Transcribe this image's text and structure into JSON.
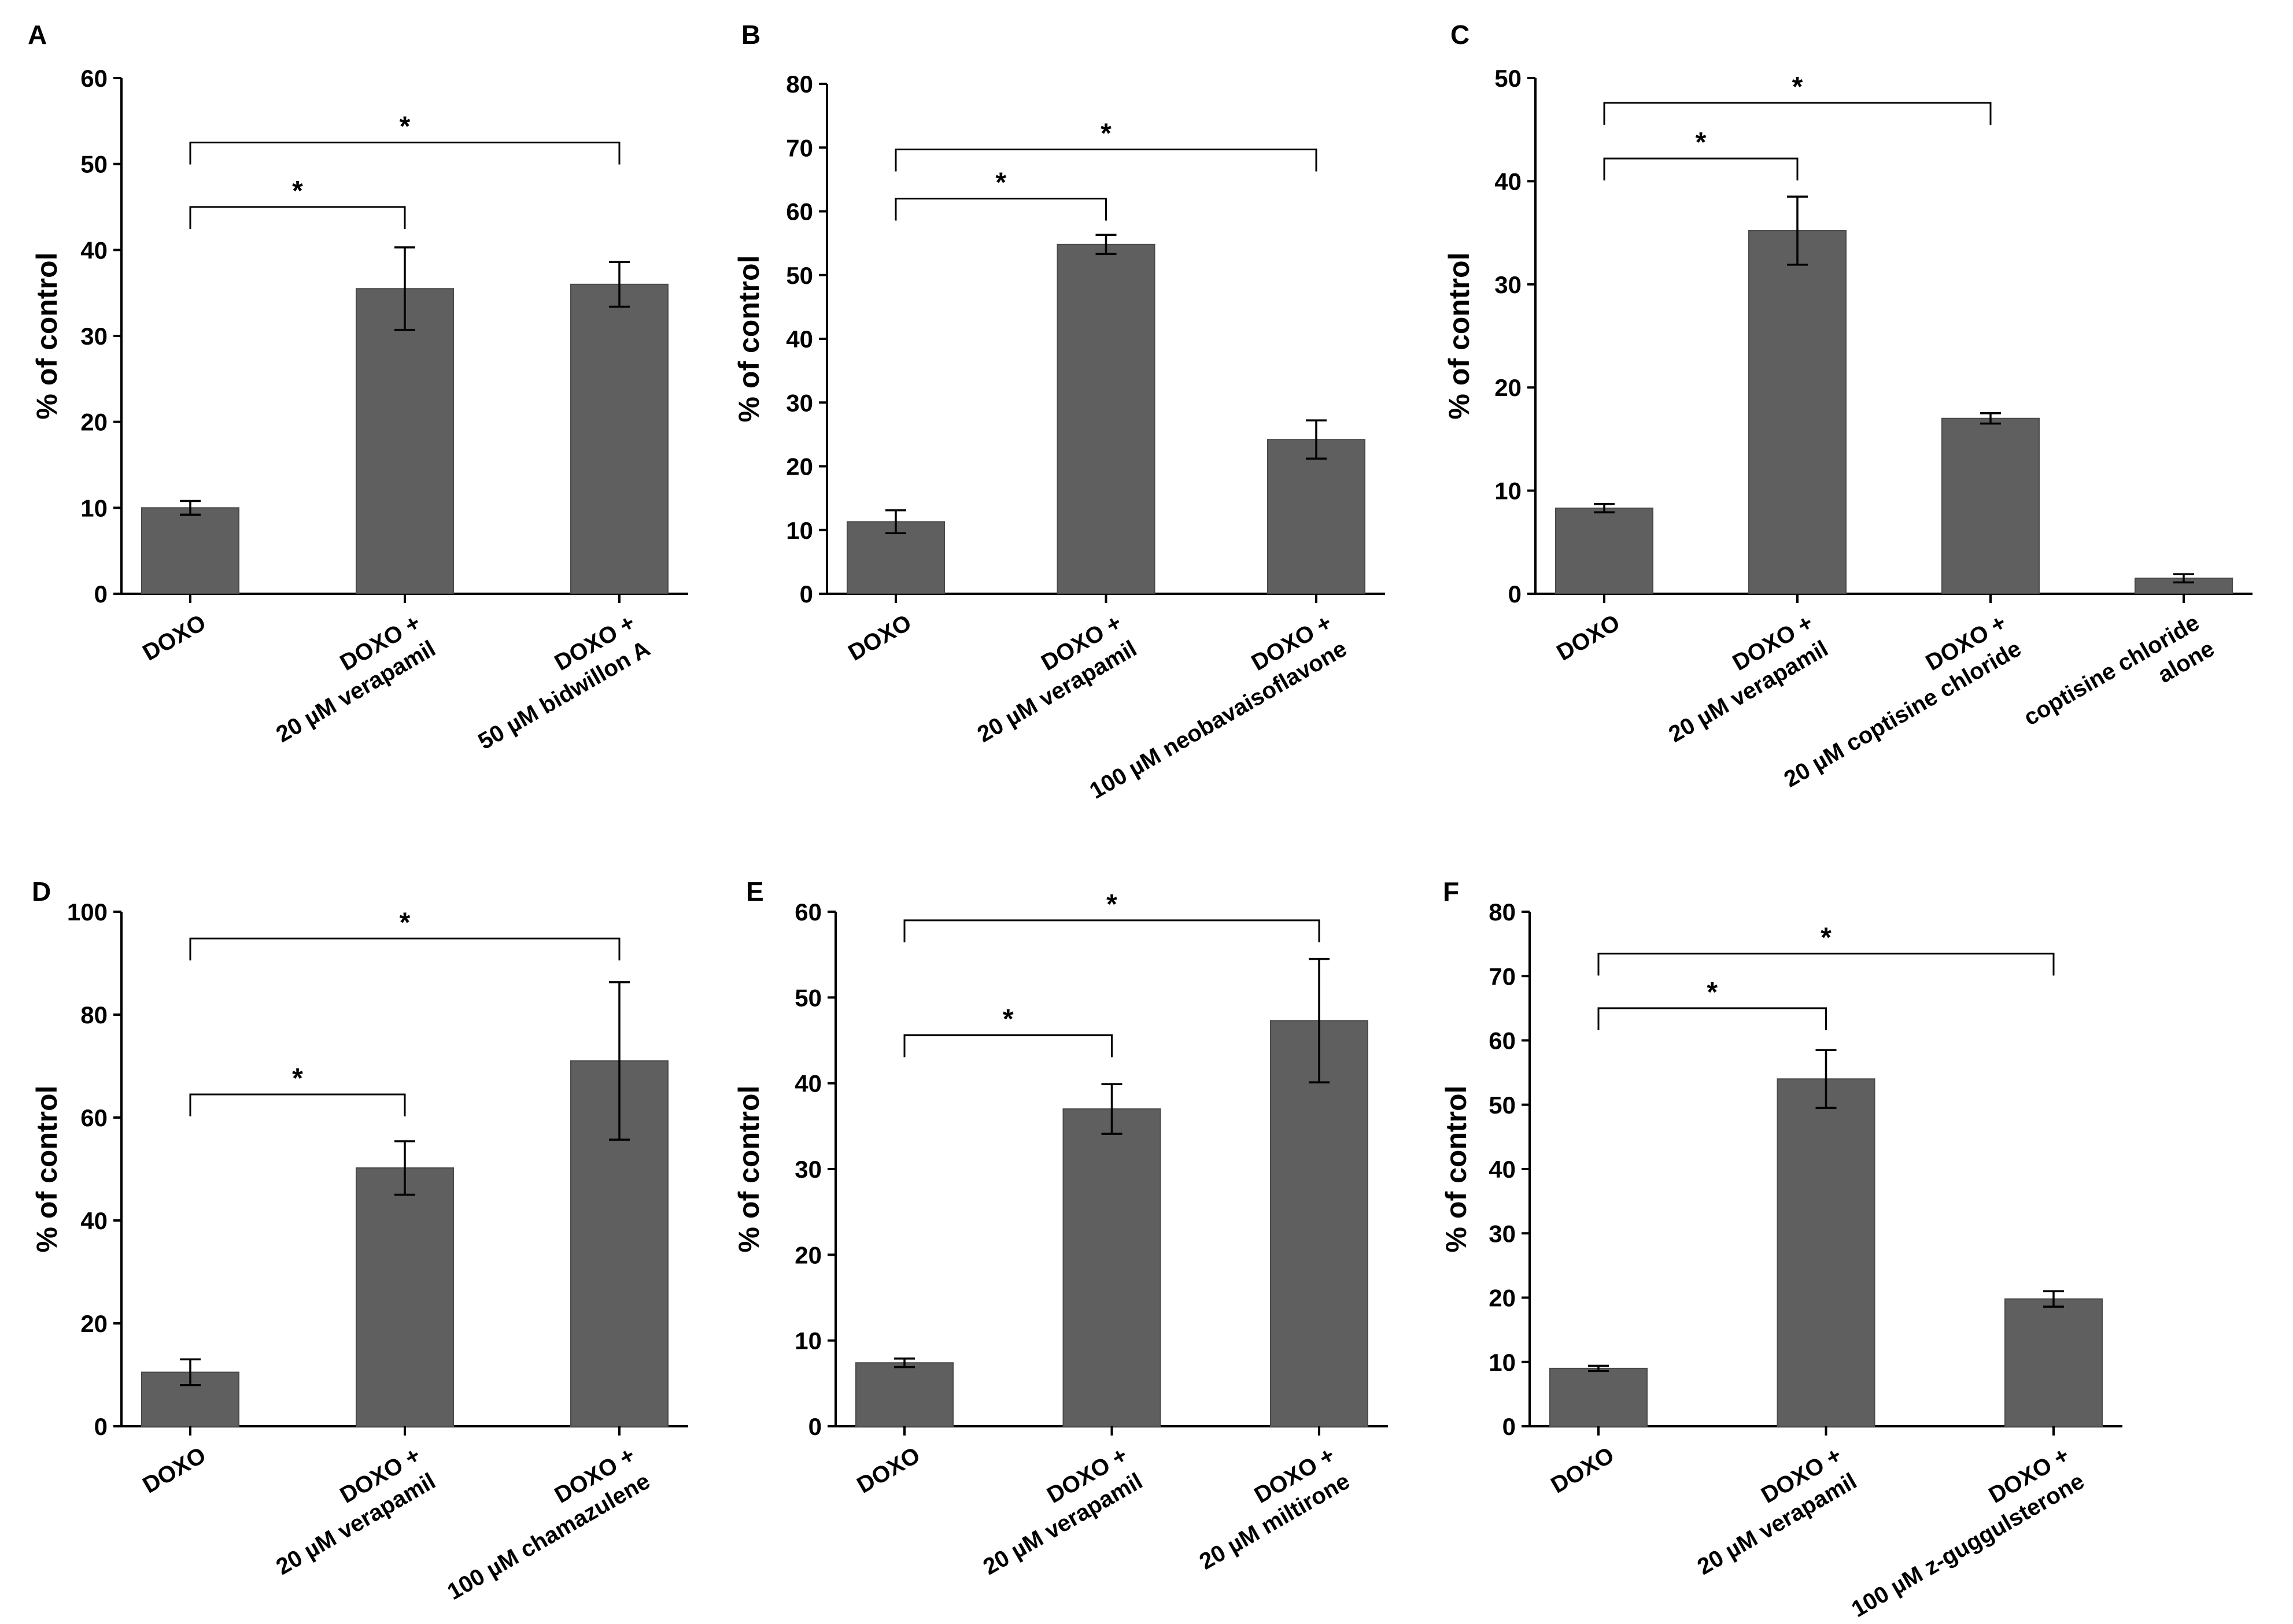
{
  "chart_data": [
    {
      "type": "bar",
      "panel": "A",
      "ylabel": "% of control",
      "ylim": [
        0,
        60
      ],
      "yticks": [
        0,
        10,
        20,
        30,
        40,
        50,
        60
      ],
      "categories": [
        [
          "DOXO"
        ],
        [
          "DOXO +",
          "20 µM verapamil"
        ],
        [
          "DOXO +",
          "50 µM bidwillon A"
        ]
      ],
      "values": [
        10,
        35.5,
        36
      ],
      "errors": [
        0.8,
        4.8,
        2.6
      ],
      "significance": [
        {
          "from": 0,
          "to": 1,
          "label": "*",
          "y": 45
        },
        {
          "from": 0,
          "to": 2,
          "label": "*",
          "y": 52.5
        }
      ]
    },
    {
      "type": "bar",
      "panel": "B",
      "ylabel": "% of control",
      "ylim": [
        0,
        80
      ],
      "yticks": [
        0,
        10,
        20,
        30,
        40,
        50,
        60,
        70,
        80
      ],
      "categories": [
        [
          "DOXO"
        ],
        [
          "DOXO +",
          "20 µM verapamil"
        ],
        [
          "DOXO +",
          "100 µM neobavaisoflavone"
        ]
      ],
      "values": [
        11.3,
        54.8,
        24.2
      ],
      "errors": [
        1.8,
        1.5,
        3
      ],
      "significance": [
        {
          "from": 0,
          "to": 1,
          "label": "*",
          "y": 62
        },
        {
          "from": 0,
          "to": 2,
          "label": "*",
          "y": 69.7
        }
      ]
    },
    {
      "type": "bar",
      "panel": "C",
      "ylabel": "% of control",
      "ylim": [
        0,
        50
      ],
      "yticks": [
        0,
        10,
        20,
        30,
        40,
        50
      ],
      "categories": [
        [
          "DOXO"
        ],
        [
          "DOXO +",
          "20 µM verapamil"
        ],
        [
          "DOXO +",
          "20 µM coptisine chloride"
        ],
        [
          "coptisine chloride",
          "alone"
        ]
      ],
      "values": [
        8.3,
        35.2,
        17,
        1.5
      ],
      "errors": [
        0.4,
        3.3,
        0.5,
        0.4
      ],
      "significance": [
        {
          "from": 0,
          "to": 1,
          "label": "*",
          "y": 42.2
        },
        {
          "from": 0,
          "to": 2,
          "label": "*",
          "y": 47.6
        }
      ]
    },
    {
      "type": "bar",
      "panel": "D",
      "ylabel": "% of control",
      "ylim": [
        0,
        100
      ],
      "yticks": [
        0,
        20,
        40,
        60,
        80,
        100
      ],
      "categories": [
        [
          "DOXO"
        ],
        [
          "DOXO +",
          "20 µM verapamil"
        ],
        [
          "DOXO +",
          "100 µM chamazulene"
        ]
      ],
      "values": [
        10.5,
        50.2,
        71
      ],
      "errors": [
        2.5,
        5.2,
        15.3
      ],
      "significance": [
        {
          "from": 0,
          "to": 1,
          "label": "*",
          "y": 64.5
        },
        {
          "from": 0,
          "to": 2,
          "label": "*",
          "y": 94.8
        }
      ]
    },
    {
      "type": "bar",
      "panel": "E",
      "ylabel": "% of control",
      "ylim": [
        0,
        60
      ],
      "yticks": [
        0,
        10,
        20,
        30,
        40,
        50,
        60
      ],
      "categories": [
        [
          "DOXO"
        ],
        [
          "DOXO +",
          "20 µM verapamil"
        ],
        [
          "DOXO +",
          "20 µM miltirone"
        ]
      ],
      "values": [
        7.4,
        37,
        47.3
      ],
      "errors": [
        0.5,
        2.9,
        7.2
      ],
      "significance": [
        {
          "from": 0,
          "to": 1,
          "label": "*",
          "y": 45.6
        },
        {
          "from": 0,
          "to": 2,
          "label": "*",
          "y": 59
        }
      ]
    },
    {
      "type": "bar",
      "panel": "F",
      "ylabel": "% of control",
      "ylim": [
        0,
        80
      ],
      "yticks": [
        0,
        10,
        20,
        30,
        40,
        50,
        60,
        70,
        80
      ],
      "categories": [
        [
          "DOXO"
        ],
        [
          "DOXO +",
          "20 µM verapamil"
        ],
        [
          "DOXO +",
          "100 µM z-guggulsterone"
        ]
      ],
      "values": [
        9,
        54,
        19.8
      ],
      "errors": [
        0.4,
        4.5,
        1.2
      ],
      "significance": [
        {
          "from": 0,
          "to": 1,
          "label": "*",
          "y": 65
        },
        {
          "from": 0,
          "to": 2,
          "label": "*",
          "y": 73.5
        }
      ]
    }
  ]
}
